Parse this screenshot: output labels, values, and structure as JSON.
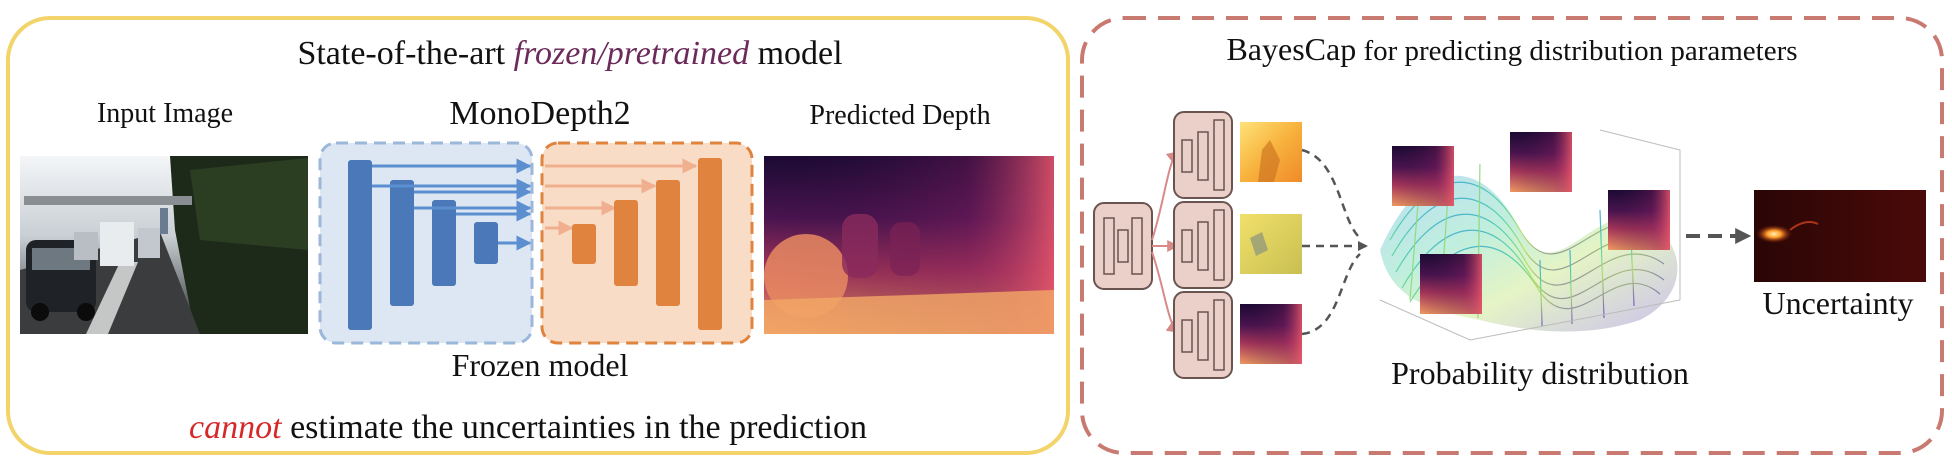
{
  "left_panel": {
    "title_prefix": "State-of-the-art ",
    "title_emphasis": "frozen/pretrained",
    "title_suffix": " model",
    "input_label": "Input Image",
    "network_label": "MonoDepth2",
    "output_label": "Predicted Depth",
    "frozen_label": "Frozen model",
    "caption_emphasis": "cannot",
    "caption_rest": " estimate the uncertainties in the prediction",
    "border_color": "#f2d46b",
    "emphasis_color": "#6b2a5a",
    "cannot_color": "#d62828"
  },
  "right_panel": {
    "title_prefix": "BayesCap",
    "title_suffix": " for predicting distribution parameters",
    "distribution_label": "Probability distribution",
    "uncertainty_label": "Uncertainty",
    "border_color": "#c97a70"
  },
  "network": {
    "encoder_color": "#4a78b8",
    "encoder_bg": "#dde7f3",
    "decoder_color": "#e0833f",
    "decoder_bg": "#f8dcc6"
  }
}
